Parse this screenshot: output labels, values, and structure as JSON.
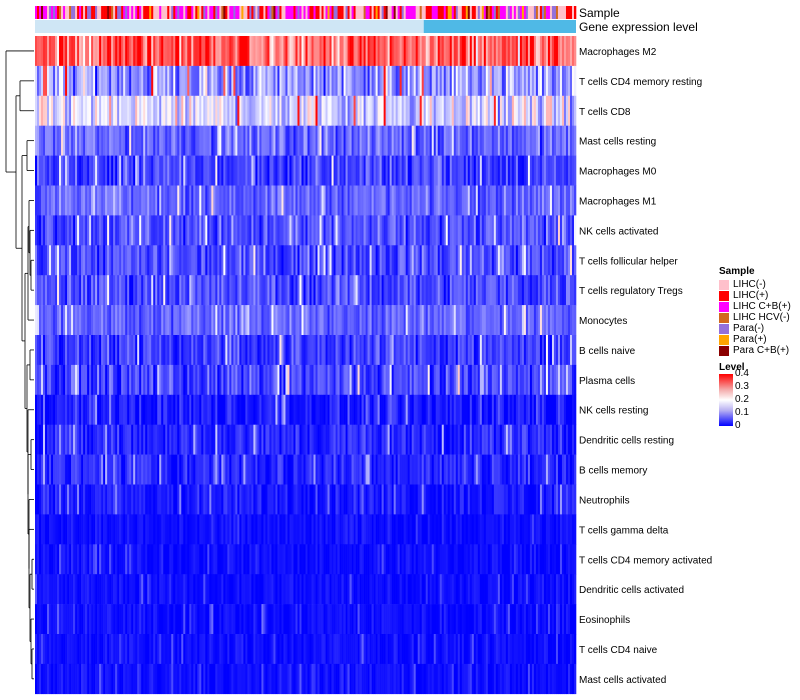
{
  "chart_data": {
    "type": "heatmap",
    "title": "",
    "annotation_tracks": [
      "Sample",
      "Gene expression level"
    ],
    "rows": [
      {
        "label": "Macrophages M2",
        "mean_level": 0.32,
        "spread": 0.09
      },
      {
        "label": "T cells CD4 memory resting",
        "mean_level": 0.12,
        "spread": 0.08
      },
      {
        "label": "T cells CD8",
        "mean_level": 0.17,
        "spread": 0.08
      },
      {
        "label": "Mast cells resting",
        "mean_level": 0.08,
        "spread": 0.05
      },
      {
        "label": "Macrophages M0",
        "mean_level": 0.05,
        "spread": 0.05
      },
      {
        "label": "Macrophages M1",
        "mean_level": 0.08,
        "spread": 0.04
      },
      {
        "label": "NK cells activated",
        "mean_level": 0.06,
        "spread": 0.05
      },
      {
        "label": "T cells follicular helper",
        "mean_level": 0.06,
        "spread": 0.05
      },
      {
        "label": "T cells regulatory  Tregs",
        "mean_level": 0.06,
        "spread": 0.05
      },
      {
        "label": "Monocytes",
        "mean_level": 0.08,
        "spread": 0.04
      },
      {
        "label": "B cells naive",
        "mean_level": 0.05,
        "spread": 0.05
      },
      {
        "label": "Plasma cells",
        "mean_level": 0.05,
        "spread": 0.05
      },
      {
        "label": "NK cells resting",
        "mean_level": 0.02,
        "spread": 0.04
      },
      {
        "label": "Dendritic cells resting",
        "mean_level": 0.03,
        "spread": 0.04
      },
      {
        "label": "B cells memory",
        "mean_level": 0.03,
        "spread": 0.04
      },
      {
        "label": "Neutrophils",
        "mean_level": 0.02,
        "spread": 0.03
      },
      {
        "label": "T cells gamma delta",
        "mean_level": 0.01,
        "spread": 0.02
      },
      {
        "label": "T cells CD4 memory activated",
        "mean_level": 0.01,
        "spread": 0.02
      },
      {
        "label": "Dendritic cells activated",
        "mean_level": 0.01,
        "spread": 0.02
      },
      {
        "label": "Eosinophils",
        "mean_level": 0.01,
        "spread": 0.02
      },
      {
        "label": "T cells CD4 naive",
        "mean_level": 0.01,
        "spread": 0.02
      },
      {
        "label": "Mast cells activated",
        "mean_level": 0.01,
        "spread": 0.02
      }
    ],
    "n_samples": 270,
    "sample_legend": {
      "title": "Sample",
      "entries": [
        {
          "label": "LIHC(-)",
          "color": "#ffc0cb"
        },
        {
          "label": "LIHC(+)",
          "color": "#ff0000"
        },
        {
          "label": "LIHC C+B(+)",
          "color": "#ff00ff"
        },
        {
          "label": "LIHC HCV(-)",
          "color": "#d2691e"
        },
        {
          "label": "Para(-)",
          "color": "#9370db"
        },
        {
          "label": "Para(+)",
          "color": "#ffa500"
        },
        {
          "label": "Para C+B(+)",
          "color": "#8b0000"
        }
      ]
    },
    "sample_group_fractions": [
      0.3,
      0.22,
      0.23,
      0.05,
      0.12,
      0.05,
      0.03
    ],
    "expression_track": {
      "low_color": "#cfe6f5",
      "high_color": "#4fb9e6",
      "transition_fraction": 0.72
    },
    "level_legend": {
      "title": "Level",
      "range": [
        0,
        0.4
      ],
      "ticks": [
        "0.4",
        "0.3",
        "0.2",
        "0.1",
        "0"
      ],
      "colors": {
        "low": "#0000ff",
        "mid": "#ffffff",
        "high": "#ff0000"
      }
    }
  }
}
